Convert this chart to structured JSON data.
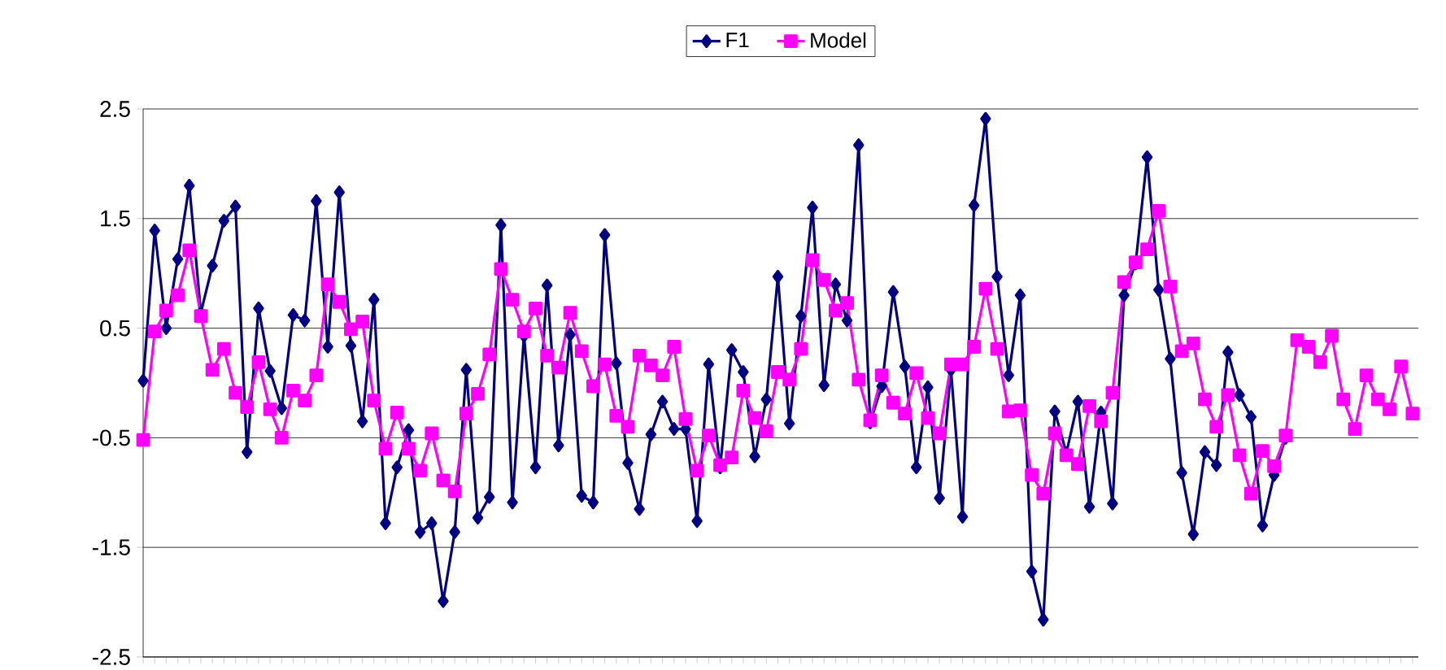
{
  "chart_data": {
    "type": "line",
    "categories": [
      null,
      null,
      null,
      null,
      null,
      null,
      null,
      null,
      null,
      null,
      null,
      null,
      null,
      null,
      null,
      null,
      null,
      null,
      null,
      null,
      null,
      null,
      null,
      null,
      null,
      null,
      null,
      null,
      null,
      null,
      null,
      null,
      null,
      null,
      null,
      null,
      null,
      null,
      null,
      null,
      null,
      null,
      null,
      null,
      null,
      null,
      null,
      null,
      null,
      null,
      null,
      null,
      null,
      null,
      null,
      null,
      null,
      null,
      null,
      null,
      null,
      null,
      null,
      null,
      null,
      null,
      null,
      null,
      null,
      null,
      null,
      null,
      null,
      null,
      null,
      null,
      null,
      null,
      null,
      null,
      null,
      null,
      null,
      null,
      null,
      null,
      null,
      null,
      null,
      null,
      null,
      null,
      null,
      null,
      null,
      null,
      null,
      null,
      null,
      null,
      null,
      null,
      null,
      null,
      null,
      null,
      null,
      null,
      null,
      null,
      null
    ],
    "series": [
      {
        "name": "F1",
        "color": "#000080",
        "marker": "diamond",
        "values": [
          0.02,
          1.39,
          0.5,
          1.13,
          1.8,
          0.64,
          1.07,
          1.48,
          1.61,
          -0.63,
          0.68,
          0.11,
          -0.23,
          0.62,
          0.57,
          1.66,
          0.33,
          1.74,
          0.34,
          -0.35,
          0.76,
          -1.28,
          -0.77,
          -0.43,
          -1.36,
          -1.28,
          -1.99,
          -1.36,
          0.12,
          -1.23,
          -1.04,
          1.44,
          -1.09,
          0.43,
          -0.77,
          0.89,
          -0.57,
          0.44,
          -1.03,
          -1.09,
          1.35,
          0.18,
          -0.73,
          -1.15,
          -0.47,
          -0.17,
          -0.42,
          -0.42,
          -1.26,
          0.17,
          -0.77,
          0.3,
          0.1,
          -0.67,
          -0.15,
          0.97,
          -0.37,
          0.61,
          1.6,
          -0.02,
          0.9,
          0.57,
          2.17,
          -0.36,
          -0.03,
          0.83,
          0.15,
          -0.77,
          -0.04,
          -1.05,
          0.12,
          -1.22,
          1.62,
          2.41,
          0.97,
          0.07,
          0.8,
          -1.72,
          -2.16,
          -0.26,
          -0.64,
          -0.17,
          -1.13,
          -0.27,
          -1.1,
          0.8,
          1.09,
          2.06,
          0.85,
          0.22,
          -0.82,
          -1.38,
          -0.63,
          -0.75,
          0.28,
          -0.11,
          -0.31,
          -1.3,
          -0.84,
          -0.5,
          null,
          null,
          null,
          null,
          null,
          null,
          null,
          null,
          null,
          null,
          null
        ]
      },
      {
        "name": "Model",
        "color": "#ff00ff",
        "marker": "square",
        "values": [
          -0.52,
          0.47,
          0.66,
          0.8,
          1.21,
          0.61,
          0.12,
          0.31,
          -0.09,
          -0.22,
          0.19,
          -0.24,
          -0.5,
          -0.07,
          -0.16,
          0.07,
          0.9,
          0.74,
          0.49,
          0.56,
          -0.16,
          -0.6,
          -0.27,
          -0.6,
          -0.8,
          -0.46,
          -0.89,
          -0.99,
          -0.28,
          -0.1,
          0.26,
          1.04,
          0.76,
          0.47,
          0.68,
          0.25,
          0.14,
          0.64,
          0.29,
          -0.03,
          0.17,
          -0.3,
          -0.4,
          0.25,
          0.16,
          0.07,
          0.33,
          -0.33,
          -0.8,
          -0.48,
          -0.75,
          -0.68,
          -0.07,
          -0.32,
          -0.44,
          0.1,
          0.03,
          0.31,
          1.12,
          0.94,
          0.66,
          0.73,
          0.03,
          -0.34,
          0.07,
          -0.18,
          -0.28,
          0.09,
          -0.32,
          -0.46,
          0.17,
          0.17,
          0.33,
          0.86,
          0.31,
          -0.26,
          -0.25,
          -0.84,
          -1.01,
          -0.46,
          -0.66,
          -0.74,
          -0.21,
          -0.35,
          -0.09,
          0.92,
          1.1,
          1.22,
          1.57,
          0.88,
          0.29,
          0.36,
          -0.15,
          -0.4,
          -0.11,
          -0.66,
          -1.01,
          -0.62,
          -0.76,
          -0.48,
          0.39,
          0.33,
          0.19,
          0.43,
          -0.15,
          -0.42,
          0.07,
          -0.15,
          -0.24,
          0.15,
          -0.28
        ]
      }
    ],
    "ylim": [
      -2.5,
      2.5
    ],
    "yticks": [
      -2.5,
      -1.5,
      -0.5,
      0.5,
      1.5,
      2.5
    ],
    "grid": "y",
    "legend": "top"
  }
}
